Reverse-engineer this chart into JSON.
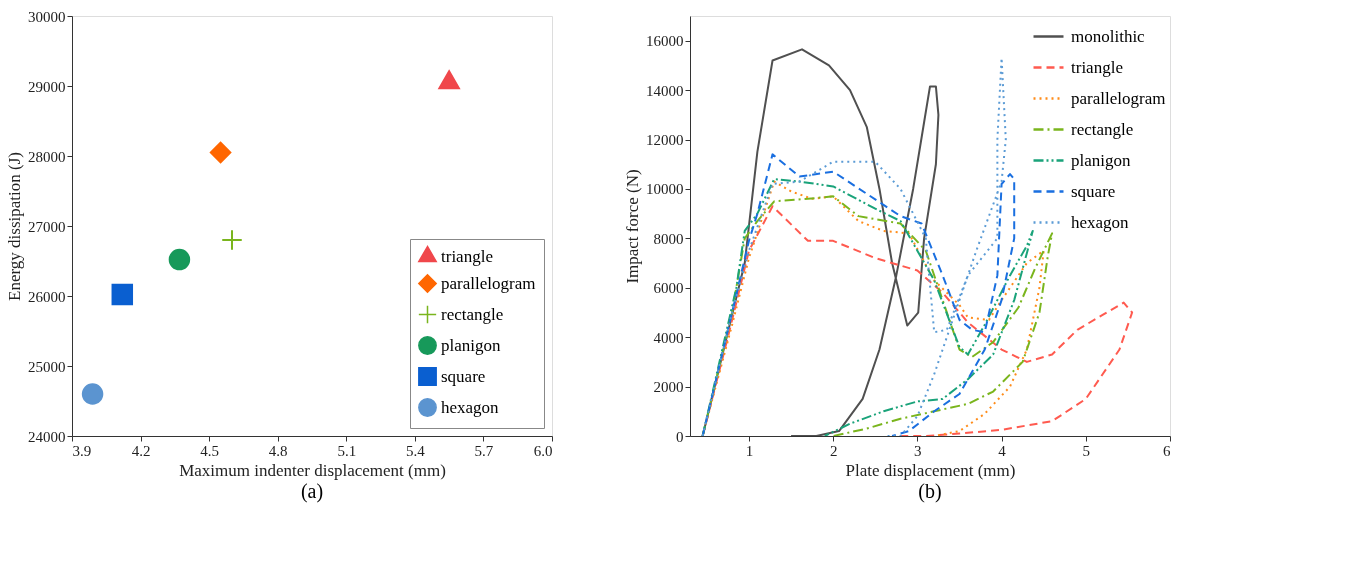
{
  "chart_data": [
    {
      "type": "scatter",
      "xlabel": "Maximum indenter displacement (mm)",
      "ylabel": "Energy dissipation (J)",
      "annotations": [
        "(a)"
      ],
      "xlim": [
        3.9,
        6.0
      ],
      "xticks": [
        3.9,
        4.2,
        4.5,
        4.8,
        5.1,
        5.4,
        5.7,
        {
          "value": 6.0,
          "label": "6.0"
        }
      ],
      "ylim": [
        24000,
        30000
      ],
      "yticks": [
        24000,
        25000,
        26000,
        27000,
        28000,
        29000,
        30000
      ],
      "grid": false,
      "legend": "bottom right",
      "series": [
        {
          "name": "triangle",
          "color": "#f0474b",
          "marker": "triangle",
          "x": [
            5.55
          ],
          "values": [
            29050
          ]
        },
        {
          "name": "parallelogram",
          "color": "#ff6600",
          "marker": "diamond",
          "x": [
            4.55
          ],
          "values": [
            28050
          ]
        },
        {
          "name": "rectangle",
          "color": "#7ab51d",
          "marker": "cross",
          "x": [
            4.6
          ],
          "values": [
            26800
          ]
        },
        {
          "name": "planigon",
          "color": "#17995a",
          "x": [
            4.37
          ],
          "values": [
            26520
          ]
        },
        {
          "name": "square",
          "color": "#0a5fd0",
          "marker": "square",
          "x": [
            4.12
          ],
          "values": [
            26020
          ]
        },
        {
          "name": "hexagon",
          "color": "#5b94d0",
          "x": [
            3.99
          ],
          "values": [
            24600
          ]
        }
      ]
    },
    {
      "type": "line",
      "xlabel": "Plate displacement (mm)",
      "ylabel": "Impact force (N)",
      "annotations": [
        "(b)"
      ],
      "xlim": [
        0.3,
        6
      ],
      "xticks": [
        1,
        2,
        3,
        4,
        5,
        6
      ],
      "ylim": [
        0,
        17000
      ],
      "yticks": [
        0,
        2000,
        4000,
        6000,
        8000,
        10000,
        12000,
        14000,
        16000
      ],
      "grid": false,
      "legend": "top right",
      "series": [
        {
          "name": "monolithic",
          "color": "#505050",
          "line_style": "solid",
          "x": [
            0.45,
            0.7,
            0.95,
            1.1,
            1.28,
            1.63,
            1.95,
            2.2,
            2.4,
            2.55,
            2.7,
            2.88,
            3.01,
            3.08,
            3.22,
            3.25,
            3.22,
            3.15,
            3.08,
            2.95,
            2.75,
            2.55,
            2.35,
            2.07,
            1.8,
            1.5
          ],
          "values": [
            0,
            3500,
            7000,
            11500,
            15200,
            15650,
            15000,
            14000,
            12500,
            10000,
            7000,
            4470,
            4990,
            8000,
            11000,
            13000,
            14150,
            14150,
            12700,
            10000,
            6500,
            3500,
            1500,
            200,
            0,
            0
          ]
        },
        {
          "name": "triangle",
          "color": "#ff5a4f",
          "line_style": "dashed",
          "x": [
            0.45,
            0.75,
            1.0,
            1.28,
            1.7,
            2.0,
            2.5,
            3.0,
            3.3,
            3.6,
            4.0,
            4.3,
            4.6,
            4.9,
            5.2,
            5.45,
            5.55,
            5.4,
            5.0,
            4.6,
            4.0,
            3.5,
            3.1,
            2.8
          ],
          "values": [
            0,
            4000,
            7500,
            9300,
            7900,
            7900,
            7200,
            6700,
            5800,
            4600,
            3500,
            3000,
            3300,
            4300,
            4900,
            5400,
            5000,
            3500,
            1500,
            600,
            250,
            100,
            0,
            0
          ]
        },
        {
          "name": "parallelogram",
          "color": "#ff8c1a",
          "line_style": "dotted",
          "x": [
            0.45,
            0.8,
            1.0,
            1.3,
            1.5,
            1.75,
            2.0,
            2.3,
            2.6,
            2.9,
            3.2,
            3.5,
            3.6,
            3.85,
            4.0,
            4.3,
            4.5,
            4.45,
            4.3,
            4.1,
            3.8,
            3.5,
            3.2
          ],
          "values": [
            0,
            4500,
            7200,
            10300,
            9900,
            9600,
            9700,
            8700,
            8300,
            8200,
            6300,
            5300,
            4800,
            4700,
            5500,
            7000,
            7500,
            6000,
            3500,
            2000,
            900,
            200,
            0
          ]
        },
        {
          "name": "rectangle",
          "color": "#7ab51d",
          "line_style": "dashdot",
          "x": [
            0.45,
            0.8,
            0.95,
            1.1,
            1.3,
            1.7,
            2.0,
            2.3,
            2.8,
            3.1,
            3.3,
            3.5,
            3.65,
            3.9,
            4.2,
            4.4,
            4.6,
            4.55,
            4.45,
            4.25,
            3.9,
            3.6,
            3.2,
            2.8,
            2.4,
            2.0
          ],
          "values": [
            0,
            5000,
            8000,
            8700,
            9500,
            9600,
            9700,
            8900,
            8600,
            7500,
            5500,
            3500,
            3200,
            3800,
            5200,
            6800,
            8200,
            7300,
            5000,
            3000,
            1800,
            1300,
            1000,
            700,
            300,
            0
          ]
        },
        {
          "name": "planigon",
          "color": "#1aa37a",
          "line_style": "dashdotdot",
          "x": [
            0.45,
            0.85,
            0.95,
            1.1,
            1.3,
            1.6,
            2.0,
            2.5,
            2.8,
            3.0,
            3.2,
            3.5,
            3.6,
            3.8,
            4.1,
            4.3,
            4.37,
            4.3,
            4.15,
            3.9,
            3.6,
            3.3,
            3.0,
            2.6,
            2.2,
            1.9
          ],
          "values": [
            0,
            6000,
            8300,
            9000,
            10400,
            10300,
            10100,
            9200,
            8700,
            7500,
            6300,
            3600,
            3300,
            4500,
            6500,
            7700,
            8300,
            7400,
            5500,
            3300,
            2300,
            1500,
            1400,
            1000,
            500,
            0
          ]
        },
        {
          "name": "square",
          "color": "#1a6fe0",
          "line_style": "dashed",
          "x": [
            0.45,
            0.8,
            1.0,
            1.1,
            1.28,
            1.6,
            2.0,
            2.4,
            2.8,
            3.05,
            3.3,
            3.5,
            3.65,
            3.8,
            3.95,
            4.0,
            4.1,
            4.15,
            4.15,
            4.0,
            3.8,
            3.5,
            3.2,
            2.9,
            2.7
          ],
          "values": [
            0,
            5000,
            7900,
            9000,
            11400,
            10500,
            10700,
            9800,
            8900,
            8600,
            6500,
            4700,
            4300,
            4200,
            6500,
            10200,
            10600,
            10400,
            8000,
            5500,
            3500,
            1700,
            1000,
            200,
            0
          ]
        },
        {
          "name": "hexagon",
          "color": "#5b9bd5",
          "line_style": "dotted",
          "x": [
            0.45,
            0.8,
            1.0,
            1.28,
            1.6,
            2.0,
            2.5,
            2.8,
            3.1,
            3.2,
            3.35,
            3.6,
            3.95,
            3.95,
            4.0,
            4.05,
            4.0,
            3.7,
            3.4,
            3.2,
            3.0,
            2.8,
            2.6
          ],
          "values": [
            0,
            5000,
            7500,
            10200,
            10300,
            11100,
            11100,
            10000,
            8000,
            4200,
            4300,
            6500,
            8000,
            12000,
            15300,
            12000,
            10300,
            7500,
            4500,
            2500,
            800,
            0,
            0
          ]
        }
      ]
    }
  ]
}
